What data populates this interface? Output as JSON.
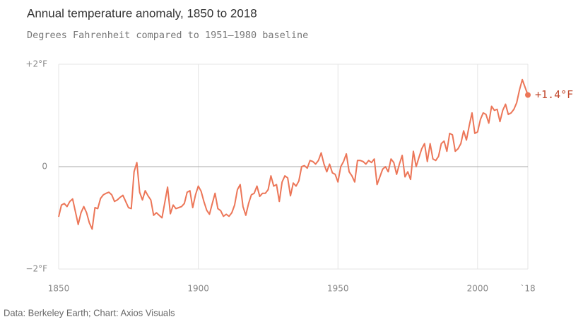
{
  "chart_data": {
    "type": "line",
    "title": "Annual temperature anomaly, 1850 to 2018",
    "subtitle": "Degrees Fahrenheit compared to 1951–1980 baseline",
    "source": "Data: Berkeley Earth; Chart: Axios Visuals",
    "end_label": "+1.4°F",
    "x": [
      1850,
      1851,
      1852,
      1853,
      1854,
      1855,
      1856,
      1857,
      1858,
      1859,
      1860,
      1861,
      1862,
      1863,
      1864,
      1865,
      1866,
      1867,
      1868,
      1869,
      1870,
      1871,
      1872,
      1873,
      1874,
      1875,
      1876,
      1877,
      1878,
      1879,
      1880,
      1881,
      1882,
      1883,
      1884,
      1885,
      1886,
      1887,
      1888,
      1889,
      1890,
      1891,
      1892,
      1893,
      1894,
      1895,
      1896,
      1897,
      1898,
      1899,
      1900,
      1901,
      1902,
      1903,
      1904,
      1905,
      1906,
      1907,
      1908,
      1909,
      1910,
      1911,
      1912,
      1913,
      1914,
      1915,
      1916,
      1917,
      1918,
      1919,
      1920,
      1921,
      1922,
      1923,
      1924,
      1925,
      1926,
      1927,
      1928,
      1929,
      1930,
      1931,
      1932,
      1933,
      1934,
      1935,
      1936,
      1937,
      1938,
      1939,
      1940,
      1941,
      1942,
      1943,
      1944,
      1945,
      1946,
      1947,
      1948,
      1949,
      1950,
      1951,
      1952,
      1953,
      1954,
      1955,
      1956,
      1957,
      1958,
      1959,
      1960,
      1961,
      1962,
      1963,
      1964,
      1965,
      1966,
      1967,
      1968,
      1969,
      1970,
      1971,
      1972,
      1973,
      1974,
      1975,
      1976,
      1977,
      1978,
      1979,
      1980,
      1981,
      1982,
      1983,
      1984,
      1985,
      1986,
      1987,
      1988,
      1989,
      1990,
      1991,
      1992,
      1993,
      1994,
      1995,
      1996,
      1997,
      1998,
      1999,
      2000,
      2001,
      2002,
      2003,
      2004,
      2005,
      2006,
      2007,
      2008,
      2009,
      2010,
      2011,
      2012,
      2013,
      2014,
      2015,
      2016,
      2017,
      2018
    ],
    "series": [
      {
        "color": "#ec7658",
        "values": [
          -0.98,
          -0.75,
          -0.72,
          -0.78,
          -0.68,
          -0.63,
          -0.88,
          -1.13,
          -0.9,
          -0.78,
          -0.9,
          -1.1,
          -1.22,
          -0.8,
          -0.82,
          -0.62,
          -0.55,
          -0.52,
          -0.5,
          -0.55,
          -0.68,
          -0.65,
          -0.6,
          -0.56,
          -0.68,
          -0.8,
          -0.82,
          -0.1,
          0.08,
          -0.5,
          -0.65,
          -0.47,
          -0.57,
          -0.65,
          -0.95,
          -0.9,
          -0.95,
          -1.0,
          -0.7,
          -0.4,
          -0.92,
          -0.75,
          -0.82,
          -0.8,
          -0.78,
          -0.72,
          -0.5,
          -0.47,
          -0.8,
          -0.55,
          -0.38,
          -0.48,
          -0.68,
          -0.85,
          -0.93,
          -0.72,
          -0.52,
          -0.82,
          -0.86,
          -0.97,
          -0.93,
          -0.97,
          -0.9,
          -0.75,
          -0.45,
          -0.35,
          -0.78,
          -0.95,
          -0.72,
          -0.55,
          -0.52,
          -0.38,
          -0.58,
          -0.52,
          -0.52,
          -0.45,
          -0.18,
          -0.38,
          -0.35,
          -0.68,
          -0.3,
          -0.18,
          -0.22,
          -0.57,
          -0.32,
          -0.38,
          -0.28,
          0.0,
          0.02,
          -0.03,
          0.12,
          0.1,
          0.05,
          0.12,
          0.27,
          0.05,
          -0.1,
          0.05,
          -0.12,
          -0.15,
          -0.3,
          0.0,
          0.1,
          0.25,
          -0.1,
          -0.18,
          -0.3,
          0.12,
          0.12,
          0.1,
          0.05,
          0.12,
          0.08,
          0.15,
          -0.35,
          -0.2,
          -0.05,
          0.0,
          -0.1,
          0.15,
          0.08,
          -0.15,
          0.05,
          0.22,
          -0.2,
          -0.1,
          -0.25,
          0.3,
          0.0,
          0.18,
          0.35,
          0.45,
          0.1,
          0.45,
          0.15,
          0.12,
          0.2,
          0.45,
          0.5,
          0.3,
          0.65,
          0.62,
          0.3,
          0.35,
          0.45,
          0.7,
          0.52,
          0.8,
          1.05,
          0.65,
          0.68,
          0.92,
          1.05,
          1.02,
          0.85,
          1.18,
          1.1,
          1.12,
          0.88,
          1.1,
          1.22,
          1.02,
          1.05,
          1.12,
          1.25,
          1.5,
          1.7,
          1.55,
          1.4
        ]
      }
    ],
    "xlim": [
      1850,
      2018
    ],
    "xticks": [
      1850,
      1900,
      1950,
      2000,
      {
        "value": 2018,
        "label": "`18"
      }
    ],
    "ylim": [
      -2,
      2
    ],
    "yticks": [
      {
        "value": 2,
        "label": "+2°F"
      },
      0,
      {
        "value": -2,
        "label": "−2°F"
      }
    ],
    "grid": true
  }
}
